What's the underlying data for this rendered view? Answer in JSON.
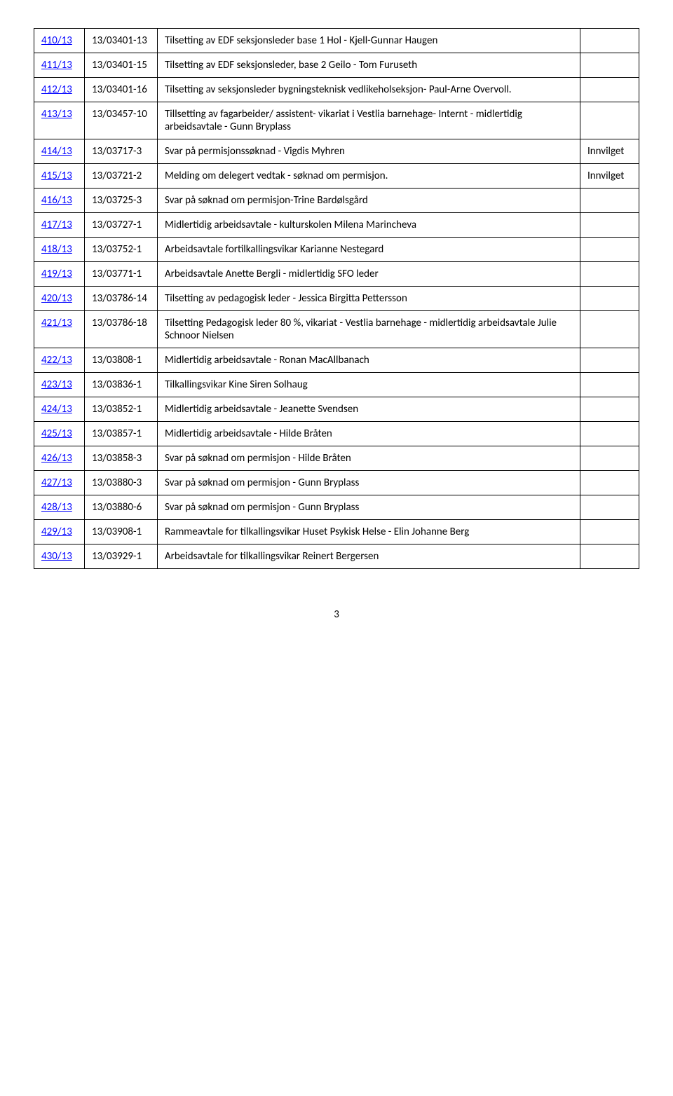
{
  "rows": [
    {
      "id": "410/13",
      "ref": "13/03401-13",
      "desc": "Tilsetting av EDF seksjonsleder base 1 Hol - Kjell-Gunnar Haugen",
      "status": ""
    },
    {
      "id": "411/13",
      "ref": "13/03401-15",
      "desc": "Tilsetting av EDF seksjonsleder, base 2 Geilo - Tom Furuseth",
      "status": ""
    },
    {
      "id": "412/13",
      "ref": "13/03401-16",
      "desc": "Tilsetting av seksjonsleder bygningsteknisk vedlikeholseksjon- Paul-Arne Overvoll.",
      "status": ""
    },
    {
      "id": "413/13",
      "ref": "13/03457-10",
      "desc": "Tillsetting av fagarbeider/ assistent- vikariat i Vestlia barnehage- Internt - midlertidig arbeidsavtale - Gunn Bryplass",
      "status": ""
    },
    {
      "id": "414/13",
      "ref": "13/03717-3",
      "desc": "Svar på permisjonssøknad - Vigdis Myhren",
      "status": "Innvilget"
    },
    {
      "id": "415/13",
      "ref": "13/03721-2",
      "desc": "Melding om delegert vedtak - søknad om permisjon.",
      "status": "Innvilget"
    },
    {
      "id": "416/13",
      "ref": "13/03725-3",
      "desc": "Svar på søknad om permisjon-Trine Bardølsgård",
      "status": ""
    },
    {
      "id": "417/13",
      "ref": "13/03727-1",
      "desc": "Midlertidig arbeidsavtale - kulturskolen Milena Marincheva",
      "status": ""
    },
    {
      "id": "418/13",
      "ref": "13/03752-1",
      "desc": "Arbeidsavtale fortilkallingsvikar Karianne Nestegard",
      "status": ""
    },
    {
      "id": "419/13",
      "ref": "13/03771-1",
      "desc": "Arbeidsavtale  Anette Bergli - midlertidig SFO leder",
      "status": ""
    },
    {
      "id": "420/13",
      "ref": "13/03786-14",
      "desc": "Tilsetting av pedagogisk leder - Jessica Birgitta Pettersson",
      "status": ""
    },
    {
      "id": "421/13",
      "ref": "13/03786-18",
      "desc": "Tilsetting Pedagogisk leder 80 %, vikariat - Vestlia barnehage - midlertidig arbeidsavtale Julie Schnoor Nielsen",
      "status": ""
    },
    {
      "id": "422/13",
      "ref": "13/03808-1",
      "desc": "Midlertidig arbeidsavtale - Ronan MacAllbanach",
      "status": ""
    },
    {
      "id": "423/13",
      "ref": "13/03836-1",
      "desc": "Tilkallingsvikar Kine Siren Solhaug",
      "status": ""
    },
    {
      "id": "424/13",
      "ref": "13/03852-1",
      "desc": "Midlertidig arbeidsavtale - Jeanette Svendsen",
      "status": ""
    },
    {
      "id": "425/13",
      "ref": "13/03857-1",
      "desc": "Midlertidig arbeidsavtale - Hilde Bråten",
      "status": ""
    },
    {
      "id": "426/13",
      "ref": "13/03858-3",
      "desc": "Svar på søknad om permisjon - Hilde Bråten",
      "status": ""
    },
    {
      "id": "427/13",
      "ref": "13/03880-3",
      "desc": "Svar på søknad om permisjon -  Gunn Bryplass",
      "status": ""
    },
    {
      "id": "428/13",
      "ref": "13/03880-6",
      "desc": "Svar på søknad om permisjon -  Gunn Bryplass",
      "status": ""
    },
    {
      "id": "429/13",
      "ref": "13/03908-1",
      "desc": "Rammeavtale for tilkallingsvikar Huset Psykisk Helse - Elin Johanne Berg",
      "status": ""
    },
    {
      "id": "430/13",
      "ref": "13/03929-1",
      "desc": "Arbeidsavtale for tilkallingsvikar  Reinert Bergersen",
      "status": ""
    }
  ],
  "page_number": "3"
}
